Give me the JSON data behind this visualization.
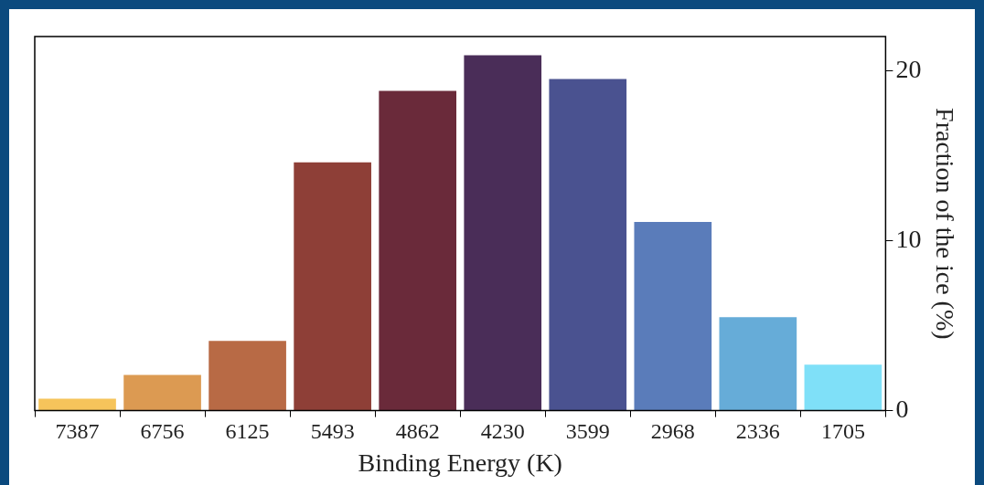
{
  "chart_data": {
    "type": "bar",
    "xlabel": "Binding Energy (K)",
    "ylabel": "Fraction of the ice (%)",
    "categories": [
      "7387",
      "6756",
      "6125",
      "5493",
      "4862",
      "4230",
      "3599",
      "2968",
      "2336",
      "1705"
    ],
    "values": [
      0.7,
      2.1,
      4.1,
      14.6,
      18.8,
      20.9,
      19.5,
      11.1,
      5.5,
      2.7
    ],
    "colors": [
      "#f6c45b",
      "#dc9a52",
      "#b86a45",
      "#8e3f37",
      "#6a2a3a",
      "#4a2d58",
      "#4a5290",
      "#5a7cba",
      "#66acd8",
      "#7fe0f8"
    ],
    "ylim": [
      0,
      22
    ],
    "yticks": [
      0,
      10,
      20
    ],
    "grid": false,
    "legend": false
  }
}
